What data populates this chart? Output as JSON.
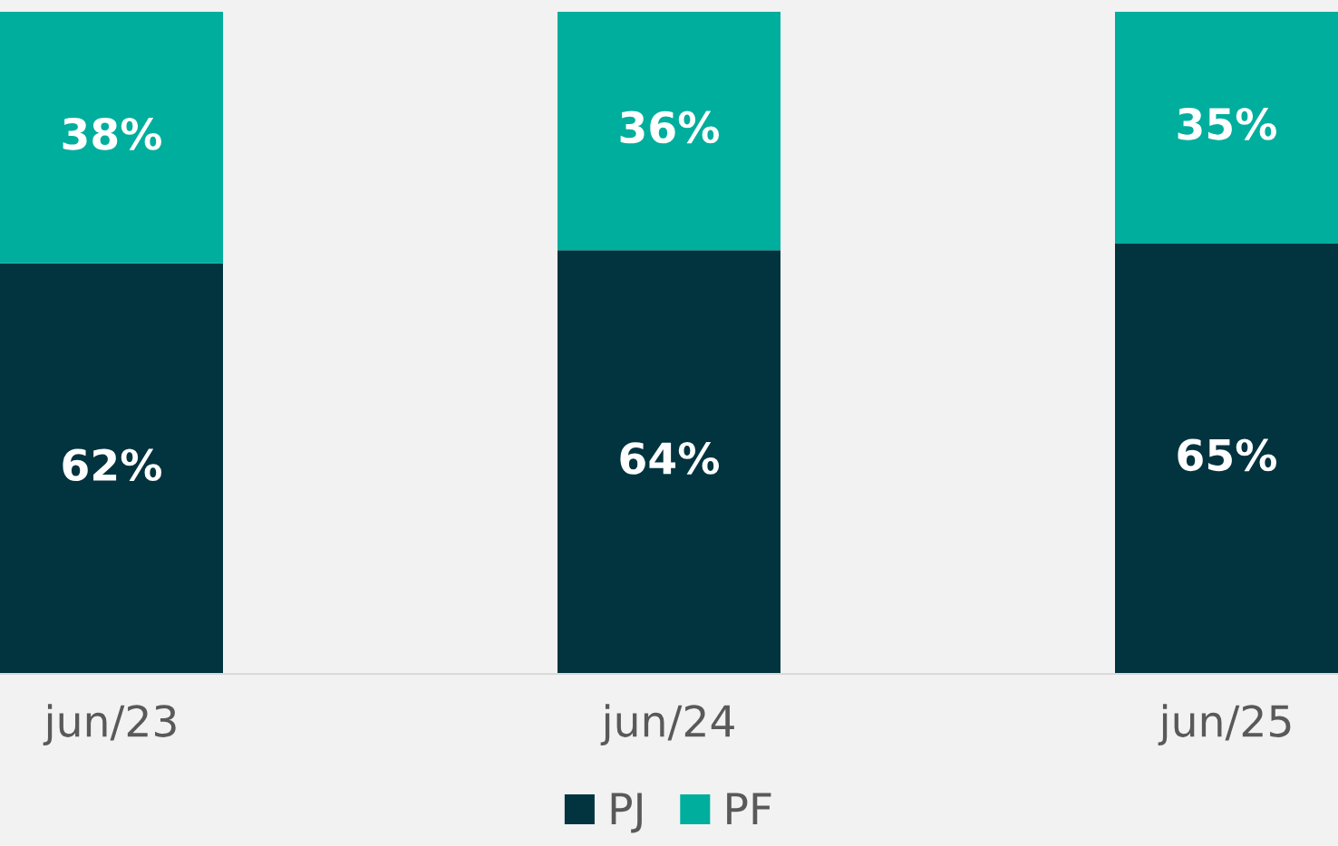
{
  "chart_data": {
    "type": "bar",
    "stacked": true,
    "categories": [
      "jun/23",
      "jun/24",
      "jun/25"
    ],
    "series": [
      {
        "name": "PJ",
        "color": "#023440",
        "values": [
          62,
          64,
          65
        ],
        "value_labels": [
          "62%",
          "64%",
          "65%"
        ]
      },
      {
        "name": "PF",
        "color": "#00ae9e",
        "values": [
          38,
          36,
          35
        ],
        "value_labels": [
          "38%",
          "36%",
          "35%"
        ]
      }
    ],
    "legend": "bottom",
    "grid": false
  }
}
